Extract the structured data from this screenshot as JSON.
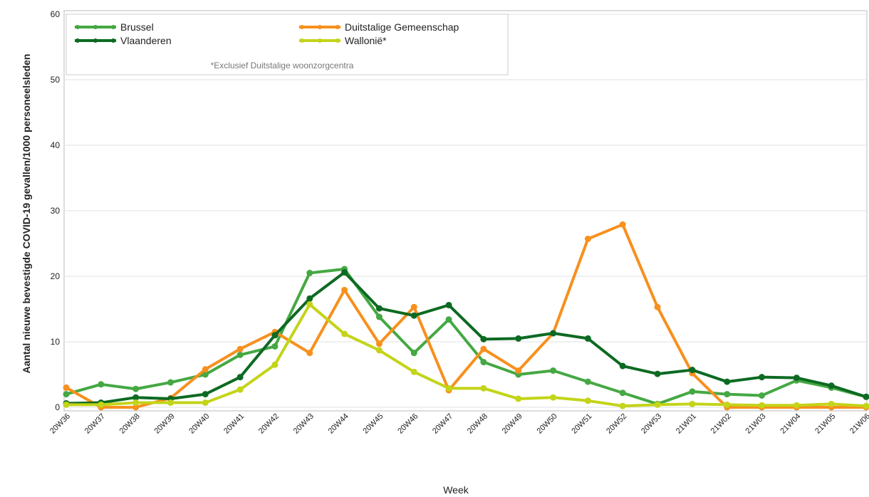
{
  "chart_data": {
    "type": "line",
    "y_label": "Aantal nieuwe bevestigde COVID-19 gevallen/1000 personeelsleden",
    "x_label": "Week",
    "note": "*Exclusief Duitstalige woonzorgcentra",
    "categories": [
      "20W36",
      "20W37",
      "20W38",
      "20W39",
      "20W40",
      "20W41",
      "20W42",
      "20W43",
      "20W44",
      "20W45",
      "20W46",
      "20W47",
      "20W48",
      "20W49",
      "20W50",
      "20W51",
      "20W52",
      "20W53",
      "21W01",
      "21W02",
      "21W03",
      "21W04",
      "21W05",
      "21W06"
    ],
    "series": [
      {
        "name": "Brussel",
        "color": "#45a843",
        "values": [
          2.0,
          3.5,
          2.8,
          3.8,
          5.0,
          8.0,
          9.3,
          20.5,
          21.1,
          13.8,
          8.3,
          13.4,
          6.9,
          5.0,
          5.6,
          3.9,
          2.2,
          0.5,
          2.4,
          2.0,
          1.8,
          4.1,
          3.0,
          1.6
        ]
      },
      {
        "name": "Duitstalige Gemeenschap",
        "color": "#f7901e",
        "values": [
          3.0,
          0,
          0,
          1.4,
          5.8,
          8.9,
          11.5,
          8.3,
          17.9,
          9.7,
          15.3,
          2.6,
          8.9,
          5.6,
          11.3,
          25.7,
          27.9,
          15.3,
          5.2,
          0,
          0,
          0,
          0,
          0
        ]
      },
      {
        "name": "Vlaanderen",
        "color": "#0d6a22",
        "values": [
          0.6,
          0.7,
          1.5,
          1.3,
          2.0,
          4.6,
          11.0,
          16.6,
          20.6,
          15.1,
          14.0,
          15.6,
          10.4,
          10.5,
          11.3,
          10.5,
          6.3,
          5.1,
          5.7,
          3.9,
          4.6,
          4.5,
          3.3,
          1.6
        ]
      },
      {
        "name": "Wallonië*",
        "color": "#c3d419",
        "values": [
          0.4,
          0.4,
          0.7,
          0.7,
          0.7,
          2.7,
          6.5,
          15.7,
          11.2,
          8.7,
          5.4,
          2.9,
          2.9,
          1.3,
          1.5,
          1.0,
          0.2,
          0.4,
          0.5,
          0.4,
          0.3,
          0.3,
          0.5,
          0.2
        ]
      }
    ],
    "ylim": [
      0,
      60
    ],
    "yticks": [
      0,
      10,
      20,
      30,
      40,
      50,
      60
    ],
    "grid": true
  }
}
